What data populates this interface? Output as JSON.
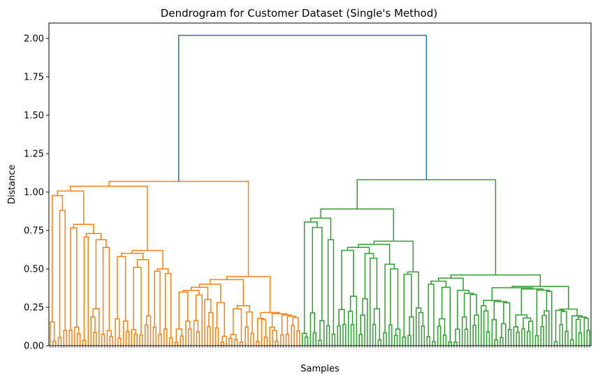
{
  "chart_data": {
    "type": "dendrogram",
    "title": "Dendrogram for Customer Dataset (Single's Method)",
    "xlabel": "Samples",
    "ylabel": "Distance",
    "ylim": [
      0,
      2.1
    ],
    "yticks": [
      "0.00",
      "0.25",
      "0.50",
      "0.75",
      "1.00",
      "1.25",
      "1.50",
      "1.75",
      "2.00"
    ],
    "grid": false,
    "leaf_count": 200,
    "colors": {
      "root": "#1f77b4",
      "cluster_1": "#ff7f0e",
      "cluster_2": "#2ca02c",
      "axis": "#000000"
    },
    "top_merge": {
      "height": 2.02
    },
    "clusters": [
      {
        "color": "#ff7f0e",
        "leaf_count": 93,
        "root_height": 1.07,
        "merge_heights": [
          1.07,
          1.04,
          1.02,
          1.0,
          0.88,
          0.79,
          0.78,
          0.73,
          0.72,
          0.69,
          0.64,
          0.62,
          0.61,
          0.58,
          0.56,
          0.51,
          0.5,
          0.49,
          0.47,
          0.45,
          0.43,
          0.4,
          0.38,
          0.36,
          0.35,
          0.33,
          0.3,
          0.28,
          0.26,
          0.24,
          0.22,
          0.2,
          0.17,
          0.15,
          0.12,
          0.1,
          0.07
        ]
      },
      {
        "color": "#2ca02c",
        "leaf_count": 107,
        "root_height": 1.08,
        "merge_heights": [
          1.08,
          0.89,
          0.83,
          0.82,
          0.77,
          0.69,
          0.68,
          0.67,
          0.66,
          0.64,
          0.6,
          0.57,
          0.53,
          0.5,
          0.48,
          0.47,
          0.46,
          0.44,
          0.42,
          0.4,
          0.38,
          0.36,
          0.34,
          0.31,
          0.29,
          0.27,
          0.26,
          0.25,
          0.23,
          0.2,
          0.18,
          0.16,
          0.14,
          0.12,
          0.09,
          0.07
        ]
      }
    ]
  }
}
